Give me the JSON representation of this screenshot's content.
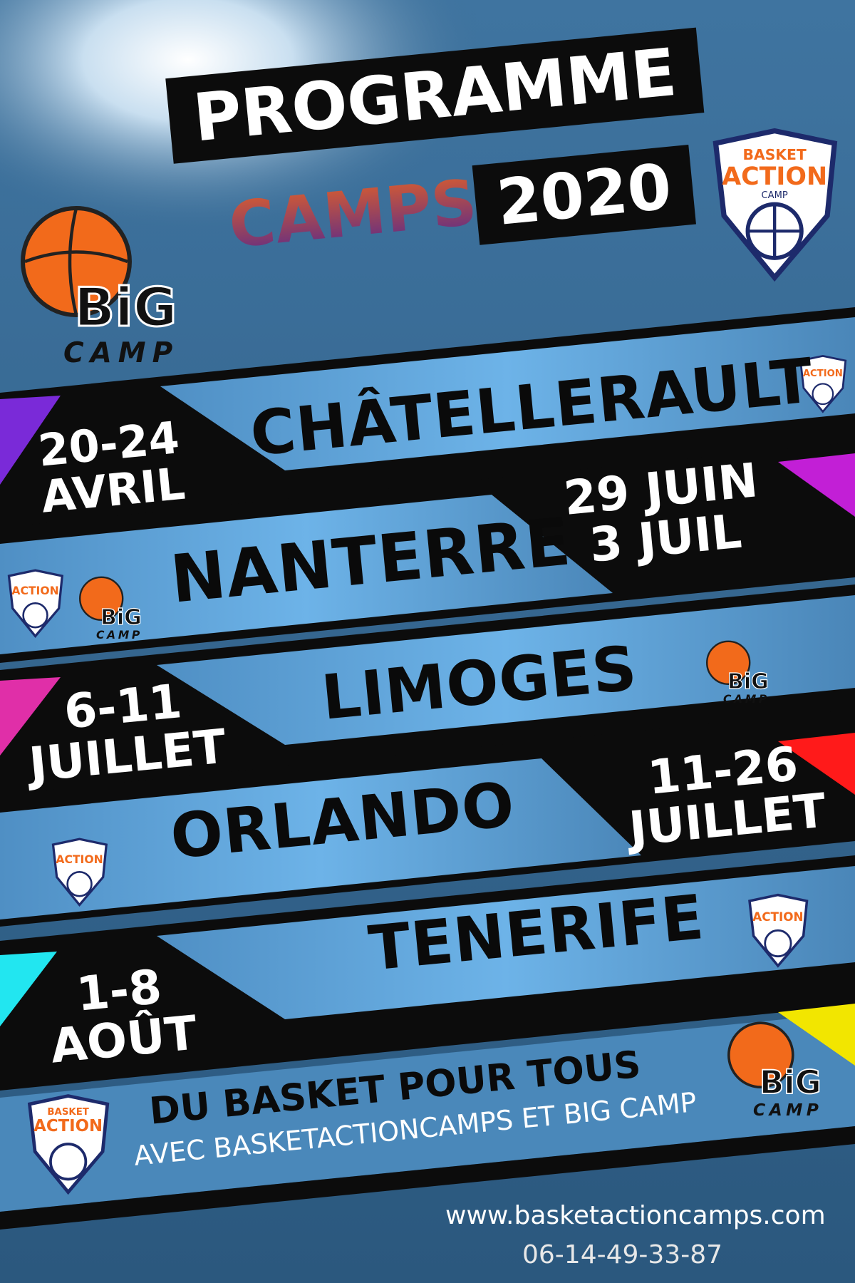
{
  "header": {
    "title_line1": "PROGRAMME",
    "title_camps": "CAMPS",
    "title_year": "2020"
  },
  "logos": {
    "basket_action": {
      "line1": "BASKET",
      "line2": "ACTION",
      "line3": "CAMP"
    },
    "big_camp": {
      "line1": "BiG",
      "line2": "CAMP"
    }
  },
  "camps": [
    {
      "city": "CHÂTELLERAULT",
      "date_line1": "20-24",
      "date_line2": "AVRIL",
      "accent": "#7a2ad8"
    },
    {
      "city": "NANTERRE",
      "date_line1": "29 JUIN",
      "date_line2": "3 JUIL",
      "accent": "#c21fd6"
    },
    {
      "city": "LIMOGES",
      "date_line1": "6-11",
      "date_line2": "JUILLET",
      "accent": "#e02fa8"
    },
    {
      "city": "ORLANDO",
      "date_line1": "11-26",
      "date_line2": "JUILLET",
      "accent": "#ff1a1a"
    },
    {
      "city": "TENERIFE",
      "date_line1": "1-8",
      "date_line2": "AOÛT",
      "accent": "#22e6f0"
    }
  ],
  "footer": {
    "tagline": "DU BASKET POUR TOUS",
    "subtagline": "AVEC BASKETACTIONCAMPS ET BIG CAMP",
    "website": "www.basketactioncamps.com",
    "phone": "06-14-49-33-87",
    "accent": "#f2e600"
  },
  "colors": {
    "background": "#2f5f86",
    "band": "#0c0c0c",
    "strip": "#5fa3d8",
    "logo_orange": "#f26a1b",
    "logo_navy": "#1d2a6b"
  }
}
